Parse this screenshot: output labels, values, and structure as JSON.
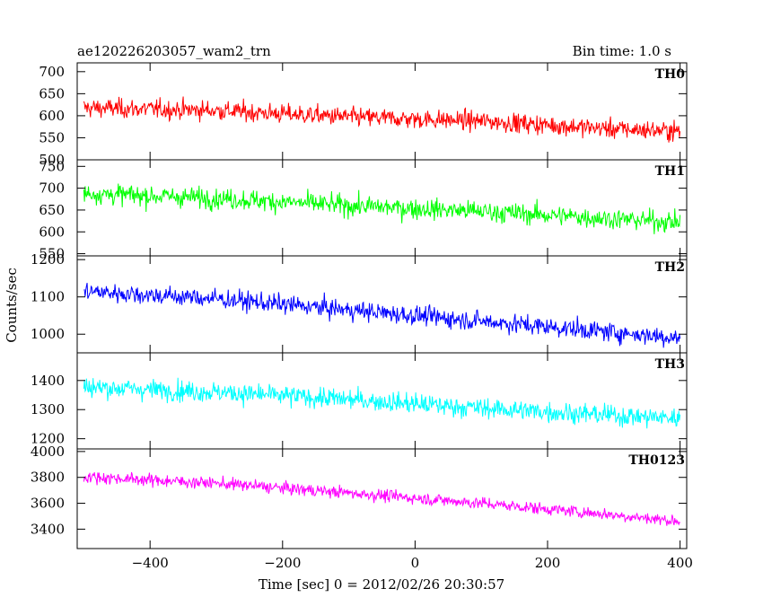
{
  "header": {
    "title": "ae120226203057_wam2_trn",
    "bin_time": "Bin time: 1.0 s"
  },
  "chart_data": {
    "type": "line",
    "xlabel": "Time [sec] 0 = 2012/02/26 20:30:57",
    "ylabel": "Counts/sec",
    "xlim": [
      -510,
      410
    ],
    "x_ticks": [
      "−400",
      "−200",
      "0",
      "200",
      "400"
    ],
    "x_tick_values": [
      -400,
      -200,
      0,
      200,
      400
    ],
    "x_range_data": [
      -500,
      400
    ],
    "grid": false,
    "panels": [
      {
        "name": "TH0",
        "color": "#ff0000",
        "ylim": [
          500,
          720
        ],
        "y_ticks": [
          "500",
          "550",
          "600",
          "650",
          "700"
        ],
        "y_tick_values": [
          500,
          550,
          600,
          650,
          700
        ],
        "trend": {
          "x": [
            -500,
            -300,
            -100,
            100,
            300,
            400
          ],
          "y": [
            618,
            612,
            597,
            588,
            570,
            565
          ]
        },
        "noise": 28
      },
      {
        "name": "TH1",
        "color": "#00ff00",
        "ylim": [
          545,
          765
        ],
        "y_ticks": [
          "550",
          "600",
          "650",
          "700",
          "750"
        ],
        "y_tick_values": [
          550,
          600,
          650,
          700,
          750
        ],
        "trend": {
          "x": [
            -500,
            -300,
            -100,
            100,
            300,
            400
          ],
          "y": [
            688,
            677,
            660,
            647,
            630,
            622
          ]
        },
        "noise": 30
      },
      {
        "name": "TH2",
        "color": "#0000ff",
        "ylim": [
          950,
          1210
        ],
        "y_ticks": [
          "1000",
          "1100",
          "1200"
        ],
        "y_tick_values": [
          1000,
          1100,
          1200
        ],
        "trend": {
          "x": [
            -500,
            -300,
            -100,
            100,
            300,
            400
          ],
          "y": [
            1115,
            1095,
            1065,
            1035,
            1005,
            990
          ]
        },
        "noise": 33
      },
      {
        "name": "TH3",
        "color": "#00ffff",
        "ylim": [
          1165,
          1495
        ],
        "y_ticks": [
          "1200",
          "1300",
          "1400"
        ],
        "y_tick_values": [
          1200,
          1300,
          1400
        ],
        "trend": {
          "x": [
            -500,
            -300,
            -100,
            100,
            300,
            400
          ],
          "y": [
            1378,
            1360,
            1335,
            1305,
            1280,
            1270
          ]
        },
        "noise": 45
      },
      {
        "name": "TH0123",
        "color": "#ff00ff",
        "ylim": [
          3250,
          4020
        ],
        "y_ticks": [
          "3400",
          "3600",
          "3800",
          "4000"
        ],
        "y_tick_values": [
          3400,
          3600,
          3800,
          4000
        ],
        "trend": {
          "x": [
            -500,
            -300,
            -100,
            100,
            300,
            400
          ],
          "y": [
            3805,
            3755,
            3680,
            3600,
            3510,
            3460
          ]
        },
        "noise": 60
      }
    ]
  }
}
